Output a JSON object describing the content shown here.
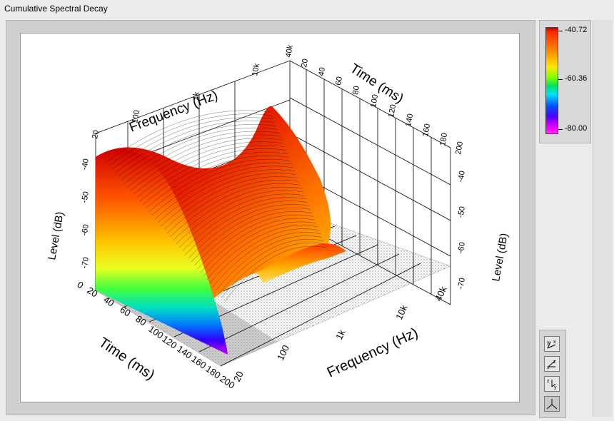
{
  "window": {
    "title": "Cumulative Spectral Decay"
  },
  "colors": {
    "surface_peak": "#d40000",
    "surface_mid": "#ff8a00",
    "surface_low": "#ffe000",
    "floor_dots": "#333333"
  },
  "scale": {
    "top": "-40.72",
    "mid": "-60.36",
    "bottom": "-80.00"
  },
  "axes": {
    "freq_top": {
      "title": "Frequency (Hz)",
      "ticks": [
        "20",
        "100",
        "1k",
        "10k",
        "40k"
      ]
    },
    "time_top": {
      "title": "Time (ms)",
      "ticks": [
        "20",
        "40",
        "60",
        "80",
        "100",
        "120",
        "140",
        "160",
        "180",
        "200"
      ]
    },
    "level_left": {
      "title": "Level (dB)",
      "ticks": [
        "-40",
        "-50",
        "-60",
        "-70"
      ]
    },
    "level_right": {
      "title": "Level (dB)",
      "ticks": [
        "-40",
        "-50",
        "-60",
        "-70"
      ]
    },
    "time_bottom": {
      "title": "Time (ms)",
      "ticks": [
        "0",
        "20",
        "40",
        "60",
        "80",
        "100",
        "120",
        "140",
        "160",
        "180",
        "200"
      ]
    },
    "freq_bottom": {
      "title": "Frequency (Hz)",
      "ticks": [
        "20",
        "100",
        "1k",
        "10k",
        "40k"
      ]
    }
  },
  "toolbar": {
    "buttons": [
      {
        "label": "x-y projection",
        "icon": "xy-projection-icon"
      },
      {
        "label": "x-z projection",
        "icon": "xz-projection-icon"
      },
      {
        "label": "y-z projection",
        "icon": "yz-projection-icon"
      },
      {
        "label": "3d view",
        "icon": "3d-view-icon"
      }
    ]
  }
}
